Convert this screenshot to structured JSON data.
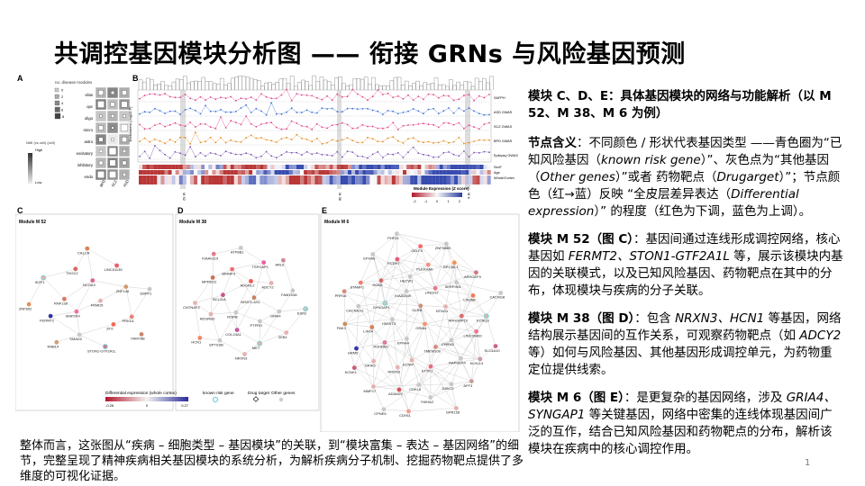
{
  "slide": {
    "title": "共调控基因模块分析图 —— 衔接 GRNs 与风险基因预测",
    "page_number": "1"
  },
  "figure": {
    "panel_a": {
      "letter": "A",
      "legend_title": "no. disease modules",
      "legend_counts": [
        "0",
        "2",
        "4",
        "6",
        "8"
      ],
      "scale_label": "NMI (vs cell) (cell)",
      "scale_high": "High",
      "scale_low": "Low",
      "rows": [
        "vilas",
        "opc",
        "oligo",
        "micro",
        "astro",
        "excitatory",
        "inhibitory",
        "endo"
      ],
      "cols": [
        "BPD",
        "SCZ",
        "ASD"
      ]
    },
    "panel_b": {
      "letter": "B",
      "y_label": "Enrichment (-log10 P)",
      "tracks": [
        "SAFPH",
        "ASD GWAS",
        "SCZ GWAS",
        "BPD GWAS",
        "Epilepsy GWAS"
      ],
      "heat_rows": [
        "SexF",
        "Age",
        "Whole/Cortex"
      ],
      "markers": [
        "M 52",
        "M 38",
        "M 6"
      ],
      "scale_title": "Module Expression (Z score)",
      "scale_ticks": [
        "-2",
        "-1",
        "0",
        "1",
        "2"
      ]
    },
    "panel_c": {
      "letter": "C",
      "title": "Module M 52",
      "genes": [
        "FRMD5",
        "MAP2K4",
        "NCOA3",
        "ZFX",
        "RNF138",
        "ZNF148",
        "SMAD2",
        "THOC2",
        "PRKD1",
        "FERMT2",
        "LINC01135",
        "STON1-GTF2A1L",
        "IKZF1",
        "EBPP1",
        "RAB14",
        "CALCR",
        "FAM78B",
        "ZNF652"
      ]
    },
    "panel_d": {
      "letter": "D",
      "title": "Module M 38",
      "genes": [
        "NR2F1-AS1",
        "RORB",
        "ADGRL2",
        "PTPRO",
        "BCL11A",
        "ADCY2",
        "COL24A1",
        "BRINP3",
        "GRM4",
        "ADGRB3",
        "TSPOAP1",
        "MET",
        "MPPED2",
        "FAM153A",
        "SPTSSB",
        "ATP8B1",
        "ZEB1",
        "CNTNAP2",
        "ARL6",
        "NRXN3",
        "KIAA0319",
        "ESR2",
        "HCN1"
      ]
    },
    "panel_e": {
      "letter": "E",
      "title": "Module M 6",
      "genes": [
        "GRIA4",
        "EPHA4",
        "GLRB",
        "TMEM108",
        "HS6ST3",
        "NTNG1",
        "KCNIP",
        "KIAA1549",
        "CHRM2",
        "RSHDM1",
        "LINGO2",
        "STYK1",
        "SYNGAP1",
        "ARHGAP10",
        "NRXN3",
        "HECW1",
        "RAPGEF4",
        "LIN7A",
        "SERPINI1",
        "CDKL5",
        "DOK6",
        "LINC00460",
        "GRIK5",
        "PLEKHA6",
        "DANT2",
        "CACNA1G",
        "LIN28B",
        "ADAM22",
        "PCDH7",
        "KLHL14",
        "GRM5",
        "DPY19L1",
        "YWHAZ",
        "STAMP1",
        "KCNQ3",
        "MMP17",
        "CELF5",
        "AFF3",
        "PAK3",
        "ARHGEF9",
        "CDH11",
        "EPHA6",
        "SLC4A10",
        "KCNK1",
        "ZNF385B",
        "GPR158",
        "PRR16",
        "CACNG8",
        "CPNE6",
        "PHF24"
      ]
    },
    "legend": {
      "expr_label": "Differential expression (whole cortex)",
      "expr_min": "-0.26",
      "expr_mid": "0",
      "expr_max": "0.27",
      "known_risk": "known risk gene",
      "drug_target": "Drug target",
      "other_genes": "Other genes"
    }
  },
  "content": {
    "p1": "模块 C、D、E：具体基因模块的网络与功能解析（以 M 52、M 38、M 6 为例）",
    "p2_head": "节点含义",
    "p2_a": "：不同颜色 / 形状代表基因类型 ——青色圈为“已知风险基因（",
    "p2_em1": "known risk gene",
    "p2_b": "）”、灰色点为“其他基因（",
    "p2_em2": "Other genes",
    "p2_c": "）”或者 药物靶点（",
    "p2_em3": "Drugarget",
    "p2_d": "）”；节点颜色（红→蓝）反映 “全皮层差异表达（",
    "p2_em4": "Differential expression",
    "p2_e": "）” 的程度（红色为下调，蓝色为上调）。",
    "p3_head": "模块 M 52（图 C）",
    "p3_a": "：基因间通过连线形成调控网络，核心基因如 ",
    "p3_em1": "FERMT2、STON1-GTF2A1L",
    "p3_b": " 等，展示该模块内基因的关联模式，以及已知风险基因、药物靶点在其中的分布，体现模块与疾病的分子关联。",
    "p4_head": "模块 M 38（图 D）",
    "p4_a": "：包含 ",
    "p4_em1": "NRXN3、HCN1",
    "p4_b": " 等基因，网络结构展示基因间的互作关系，可观察药物靶点（如 ",
    "p4_em2": "ADCY2",
    "p4_c": " 等）如何与风险基因、其他基因形成调控单元，为药物重定位提供线索。",
    "p5_head": "模块 M 6（图 E）",
    "p5_a": "：是更复杂的基因网络，涉及 ",
    "p5_em1": "GRIA4、SYNGAP1",
    "p5_b": " 等关键基因，网络中密集的连线体现基因间广泛的互作，结合已知风险基因和药物靶点的分布，解析该模块在疾病中的核心调控作用。",
    "bottom": "整体而言，这张图从“疾病 – 细胞类型 – 基因模块”的关联，到“模块富集 – 表达 – 基因网络”的细节，完整呈现了精神疾病相关基因模块的系统分析，为解析疾病分子机制、挖掘药物靶点提供了多维度的可视化证据。"
  },
  "colors": {
    "known_risk": "#7fd3d0",
    "drug_target": "#3333aa",
    "down": "#c0392b",
    "up": "#2c3e9a",
    "pink": "#e0408a",
    "blue_line": "#3b6fd1",
    "orange": "#e08a1e",
    "purple": "#7b4fb0"
  }
}
